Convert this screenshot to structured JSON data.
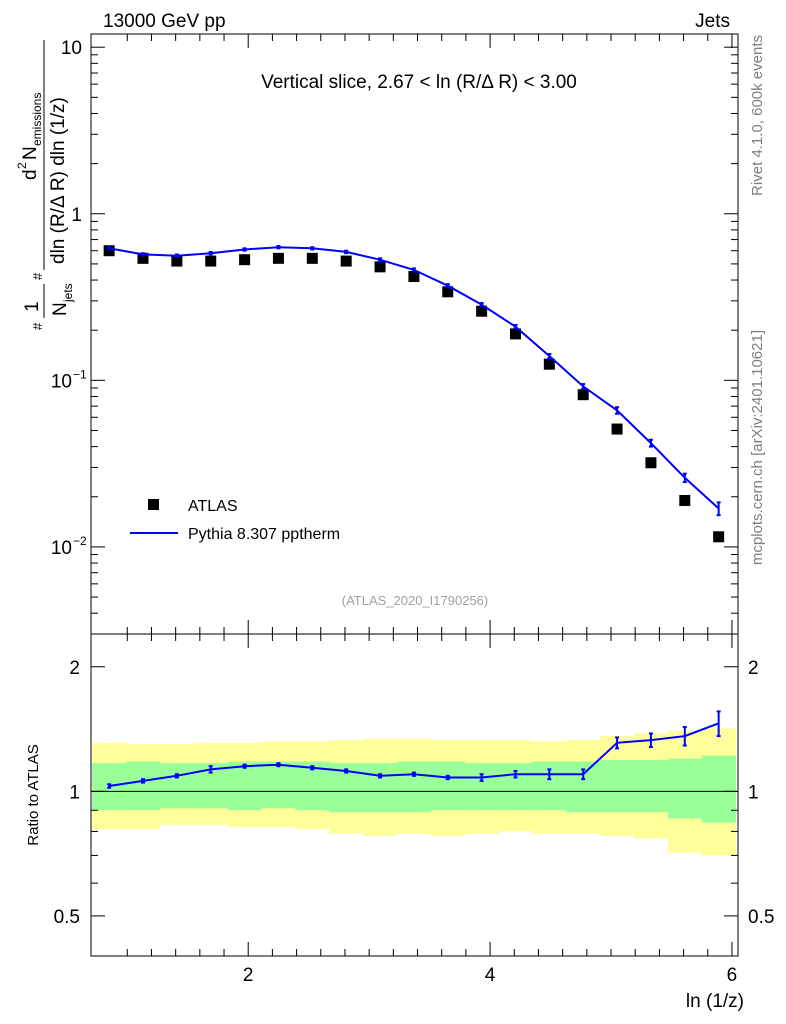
{
  "header": {
    "left": "13000 GeV pp",
    "right": "Jets"
  },
  "side": {
    "top": "Rivet 4.1.0,  600k events",
    "bottom": "mcplots.cern.ch [arXiv:2401.10621]"
  },
  "chart_data": {
    "type": "scatter",
    "title": "Vertical slice, 2.67 < ln (R/Δ R) < 3.00",
    "watermark": "(ATLAS_2020_I1790256)",
    "xlabel": "ln (1/z)",
    "ylabel_parts": {
      "frac1": "1",
      "njets": "N",
      "jets_sub": "jets",
      "d2": "d",
      "sup2": "2",
      "n": "N",
      "emissions_sub": "emissions",
      "den": "dln (R/Δ R) dln (1/z)",
      "hash": "#"
    },
    "ratio_ylabel": "Ratio to ATLAS",
    "xlim": [
      0.7,
      6.05
    ],
    "ylim_main": [
      0.003,
      12
    ],
    "ylim_ratio": [
      0.4,
      2.4
    ],
    "x_ticks": [
      "2",
      "4",
      "6"
    ],
    "x_tick_values": [
      2,
      4,
      6
    ],
    "main_y_ticks": [
      {
        "value": 10,
        "label": "10"
      },
      {
        "value": 1,
        "label": "1"
      },
      {
        "value": 0.1,
        "label": "10",
        "exp": "−1"
      },
      {
        "value": 0.01,
        "label": "10",
        "exp": "−2"
      }
    ],
    "ratio_y_ticks": [
      {
        "value": 2,
        "label": "2"
      },
      {
        "value": 1,
        "label": "1"
      },
      {
        "value": 0.5,
        "label": "0.5"
      }
    ],
    "x": [
      0.85,
      1.13,
      1.41,
      1.69,
      1.97,
      2.25,
      2.53,
      2.81,
      3.09,
      3.37,
      3.65,
      3.93,
      4.21,
      4.49,
      4.77,
      5.05,
      5.33,
      5.61,
      5.89
    ],
    "series": [
      {
        "name": "ATLAS",
        "color": "#000000",
        "values": [
          0.6,
          0.54,
          0.52,
          0.52,
          0.53,
          0.54,
          0.54,
          0.52,
          0.48,
          0.42,
          0.34,
          0.26,
          0.19,
          0.125,
          0.082,
          0.051,
          0.032,
          0.019,
          0.0115
        ]
      },
      {
        "name": "Pythia 8.307 pptherm",
        "color": "#0000ff",
        "values": [
          0.62,
          0.57,
          0.56,
          0.58,
          0.61,
          0.63,
          0.62,
          0.59,
          0.53,
          0.46,
          0.37,
          0.285,
          0.21,
          0.14,
          0.092,
          0.066,
          0.042,
          0.026,
          0.017
        ],
        "errors": [
          0.01,
          0.01,
          0.01,
          0.01,
          0.01,
          0.01,
          0.01,
          0.01,
          0.01,
          0.01,
          0.008,
          0.006,
          0.005,
          0.004,
          0.003,
          0.003,
          0.002,
          0.0015,
          0.0015
        ]
      }
    ],
    "ratio": {
      "values": [
        1.03,
        1.06,
        1.09,
        1.13,
        1.15,
        1.16,
        1.14,
        1.12,
        1.09,
        1.1,
        1.08,
        1.08,
        1.1,
        1.1,
        1.1,
        1.31,
        1.33,
        1.36,
        1.46
      ],
      "errors": [
        0.01,
        0.01,
        0.01,
        0.02,
        0.01,
        0.01,
        0.01,
        0.01,
        0.01,
        0.01,
        0.01,
        0.02,
        0.02,
        0.03,
        0.03,
        0.04,
        0.05,
        0.07,
        0.1
      ],
      "band_inner": [
        [
          0.9,
          1.17
        ],
        [
          0.9,
          1.18
        ],
        [
          0.91,
          1.17
        ],
        [
          0.91,
          1.17
        ],
        [
          0.9,
          1.18
        ],
        [
          0.91,
          1.18
        ],
        [
          0.9,
          1.18
        ],
        [
          0.89,
          1.17
        ],
        [
          0.89,
          1.17
        ],
        [
          0.89,
          1.18
        ],
        [
          0.9,
          1.18
        ],
        [
          0.9,
          1.17
        ],
        [
          0.9,
          1.17
        ],
        [
          0.9,
          1.18
        ],
        [
          0.89,
          1.18
        ],
        [
          0.89,
          1.19
        ],
        [
          0.89,
          1.19
        ],
        [
          0.86,
          1.2
        ],
        [
          0.84,
          1.22
        ]
      ],
      "band_outer": [
        [
          0.81,
          1.31
        ],
        [
          0.81,
          1.3
        ],
        [
          0.83,
          1.3
        ],
        [
          0.83,
          1.31
        ],
        [
          0.82,
          1.31
        ],
        [
          0.82,
          1.32
        ],
        [
          0.81,
          1.32
        ],
        [
          0.79,
          1.33
        ],
        [
          0.78,
          1.34
        ],
        [
          0.79,
          1.34
        ],
        [
          0.78,
          1.33
        ],
        [
          0.79,
          1.33
        ],
        [
          0.8,
          1.33
        ],
        [
          0.79,
          1.32
        ],
        [
          0.79,
          1.33
        ],
        [
          0.78,
          1.36
        ],
        [
          0.77,
          1.38
        ],
        [
          0.71,
          1.4
        ],
        [
          0.7,
          1.42
        ]
      ]
    },
    "colors": {
      "yellow": "#ffff99",
      "green": "#99ff99",
      "blue": "#0000ff",
      "black": "#000000",
      "gray": "#7f7f7f"
    }
  }
}
